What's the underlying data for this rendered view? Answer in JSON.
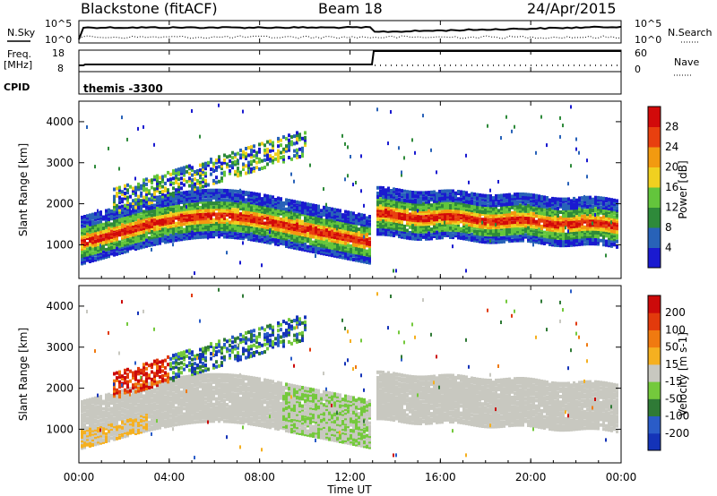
{
  "header": {
    "title": "Blackstone (fitACF)",
    "beam": "Beam 18",
    "date": "24/Apr/2015"
  },
  "summary": {
    "nsky_label": "N.Sky",
    "nsearch_label": "N.Search",
    "scale_hi": "10^5",
    "scale_lo": "10^0",
    "freq_label": "Freq.",
    "freq_unit": "[MHz]",
    "freq_ticks": [
      "18",
      "8"
    ],
    "nave_label": "Nave",
    "nave_ticks": [
      "60",
      "0"
    ],
    "cpid_label": "CPID",
    "cpid_value": "themis -3300"
  },
  "chart_data": [
    {
      "type": "heatmap",
      "ylabel": "Slant Range [km]",
      "yticks": [
        "1000",
        "2000",
        "3000",
        "4000"
      ],
      "colorbar_label": "Power [dB]",
      "colorbar_ticks": [
        "4",
        "8",
        "12",
        "16",
        "20",
        "24",
        "28"
      ],
      "colors": [
        "#1a1ad0",
        "#2862b8",
        "#2e8a3a",
        "#63c53c",
        "#f0d020",
        "#f29a10",
        "#e8400f",
        "#d20a0a"
      ],
      "xlim": [
        "00:00",
        "24:00"
      ],
      "ylim": [
        180,
        4500
      ]
    },
    {
      "type": "heatmap",
      "ylabel": "Slant Range [km]",
      "yticks": [
        "1000",
        "2000",
        "3000",
        "4000"
      ],
      "colorbar_label": "Velocity [m s-1]",
      "colorbar_ticks": [
        "200",
        "100",
        "50",
        "15",
        "-15",
        "-50",
        "-100",
        "-200"
      ],
      "colors": [
        "#1433b8",
        "#2a5cc8",
        "#2f7a36",
        "#74c93c",
        "#c8c8c0",
        "#f5b020",
        "#f07a10",
        "#e23a0c",
        "#cc0a0a"
      ],
      "xlim": [
        "00:00",
        "24:00"
      ],
      "ylim": [
        180,
        4500
      ]
    }
  ],
  "xaxis": {
    "ticks": [
      "00:00",
      "04:00",
      "08:00",
      "12:00",
      "16:00",
      "20:00",
      "00:00"
    ],
    "label": "Time UT"
  }
}
